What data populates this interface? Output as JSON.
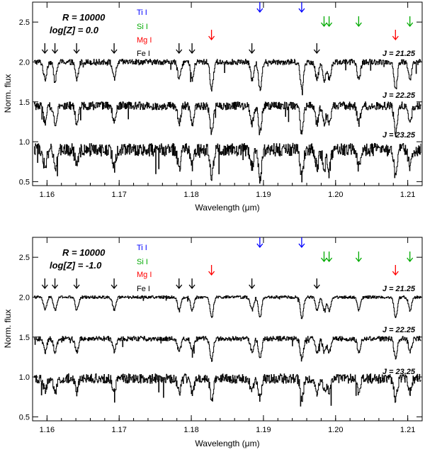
{
  "figure": {
    "panels": [
      {
        "resolution_label": "R = 10000",
        "metallicity_label": "log[Z] = 0.0",
        "legend": [
          {
            "name": "Ti I",
            "color": "#0000ff"
          },
          {
            "name": "Si I",
            "color": "#00aa00"
          },
          {
            "name": "Mg I",
            "color": "#ff0000"
          },
          {
            "name": "Fe I",
            "color": "#000000"
          }
        ],
        "spectra_labels": [
          "J = 21.25",
          "J = 22.25",
          "J = 23.25"
        ]
      },
      {
        "resolution_label": "R = 10000",
        "metallicity_label": "log[Z] = -1.0",
        "legend": [
          {
            "name": "Ti I",
            "color": "#0000ff"
          },
          {
            "name": "Si I",
            "color": "#00aa00"
          },
          {
            "name": "Mg I",
            "color": "#ff0000"
          },
          {
            "name": "Fe I",
            "color": "#000000"
          }
        ],
        "spectra_labels": [
          "J = 21.25",
          "J = 22.25",
          "J = 23.25"
        ]
      }
    ]
  },
  "chart_data": [
    {
      "type": "line",
      "xlabel": "Wavelength (μm)",
      "ylabel": "Norm. flux",
      "xlim": [
        1.158,
        1.212
      ],
      "ylim": [
        0.45,
        2.75
      ],
      "x_ticks": [
        1.16,
        1.17,
        1.18,
        1.19,
        1.2,
        1.21
      ],
      "x_tick_labels": [
        "1.16",
        "1.17",
        "1.18",
        "1.19",
        "1.20",
        "1.21"
      ],
      "y_ticks": [
        0.5,
        1.0,
        1.5,
        2.0,
        2.5
      ],
      "y_tick_labels": [
        "0.5",
        "1.0",
        "1.5",
        "2.0",
        "2.5"
      ],
      "annotations": [
        "R = 10000",
        "log[Z] = 0.0"
      ],
      "line_markers": {
        "Ti I": [
          1.1895,
          1.1953
        ],
        "Si I": [
          1.1984,
          1.1991,
          1.2032,
          1.2103
        ],
        "Mg I": [
          1.1828,
          1.2083
        ],
        "Fe I": [
          1.1597,
          1.1611,
          1.1641,
          1.1693,
          1.1783,
          1.1801,
          1.1884,
          1.1974
        ]
      },
      "series": [
        {
          "name": "J = 21.25",
          "baseline": 2.0,
          "noise": 0.035,
          "line_depth_scale": 1.0
        },
        {
          "name": "J = 22.25",
          "baseline": 1.45,
          "noise": 0.05,
          "line_depth_scale": 1.0
        },
        {
          "name": "J = 23.25",
          "baseline": 0.9,
          "noise": 0.08,
          "line_depth_scale": 1.0
        }
      ]
    },
    {
      "type": "line",
      "xlabel": "Wavelength (μm)",
      "ylabel": "Norm. flux",
      "xlim": [
        1.158,
        1.212
      ],
      "ylim": [
        0.45,
        2.75
      ],
      "x_ticks": [
        1.16,
        1.17,
        1.18,
        1.19,
        1.2,
        1.21
      ],
      "x_tick_labels": [
        "1.16",
        "1.17",
        "1.18",
        "1.19",
        "1.20",
        "1.21"
      ],
      "y_ticks": [
        0.5,
        1.0,
        1.5,
        2.0,
        2.5
      ],
      "y_tick_labels": [
        "0.5",
        "1.0",
        "1.5",
        "2.0",
        "2.5"
      ],
      "annotations": [
        "R = 10000",
        "log[Z] = -1.0"
      ],
      "line_markers": {
        "Ti I": [
          1.1895,
          1.1953
        ],
        "Si I": [
          1.1984,
          1.1991,
          1.2032,
          1.2103
        ],
        "Mg I": [
          1.1828,
          1.2083
        ],
        "Fe I": [
          1.1597,
          1.1611,
          1.1641,
          1.1693,
          1.1783,
          1.1801,
          1.1884,
          1.1974
        ]
      },
      "series": [
        {
          "name": "J = 21.25",
          "baseline": 2.0,
          "noise": 0.018,
          "line_depth_scale": 0.75
        },
        {
          "name": "J = 22.25",
          "baseline": 1.48,
          "noise": 0.03,
          "line_depth_scale": 0.75
        },
        {
          "name": "J = 23.25",
          "baseline": 0.98,
          "noise": 0.06,
          "line_depth_scale": 0.75
        }
      ]
    }
  ]
}
